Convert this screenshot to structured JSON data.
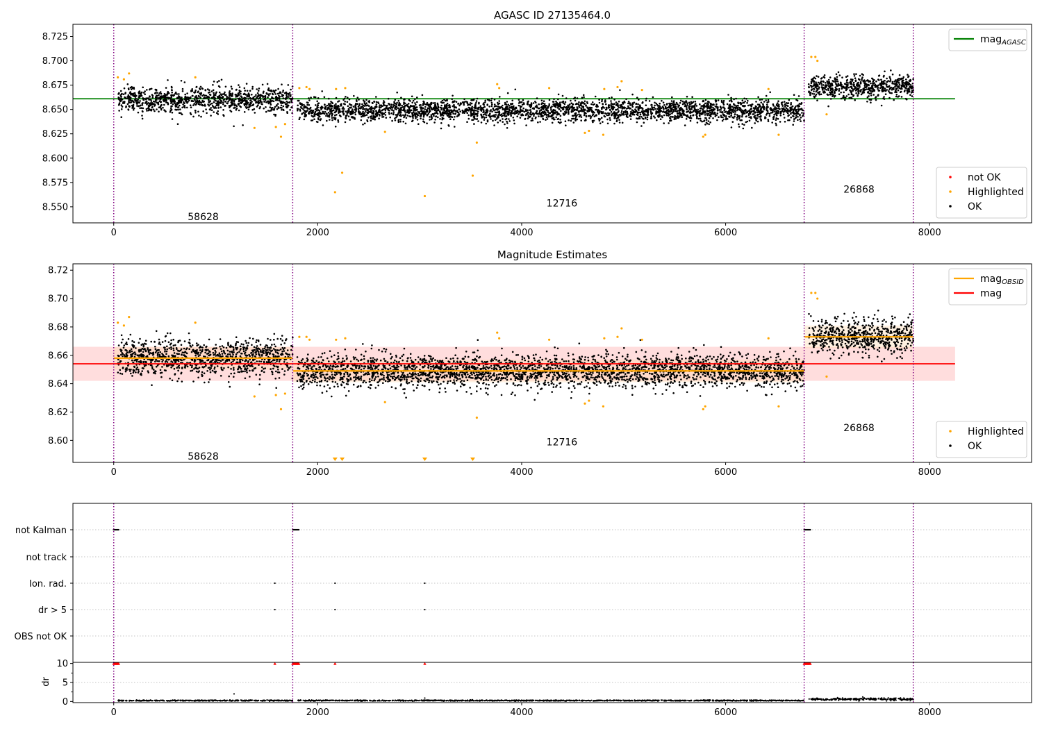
{
  "colors": {
    "ok": "#000000",
    "highlighted": "#ffa500",
    "not_ok": "#ff0000",
    "agasc_line": "#008000",
    "obsid_line": "#ffa500",
    "mag_line": "#ff0000",
    "mag_band": "#ffb3b3",
    "obsid_band": "#ffd8a8",
    "obsid_divider": "#800080",
    "category_grid": "#b0b0b0"
  },
  "chart_data": [
    {
      "type": "scatter",
      "title": "AGASC ID 27135464.0",
      "xlim": [
        -400,
        9000
      ],
      "ylim": [
        8.5335,
        8.7375
      ],
      "xticks": [
        0,
        2000,
        4000,
        6000,
        8000
      ],
      "yticks": [
        8.55,
        8.575,
        8.6,
        8.625,
        8.65,
        8.675,
        8.7,
        8.725
      ],
      "ytick_labels": [
        "8.550",
        "8.575",
        "8.600",
        "8.625",
        "8.650",
        "8.675",
        "8.700",
        "8.725"
      ],
      "obsid_boundaries": [
        0,
        1755,
        6770,
        7840
      ],
      "obsids": [
        {
          "label": "58628",
          "x_start": 0,
          "x_end": 1755,
          "mean": 8.66,
          "spread": 0.009
        },
        {
          "label": "12716",
          "x_start": 1760,
          "x_end": 6770,
          "mean": 8.649,
          "spread": 0.008
        },
        {
          "label": "26868",
          "x_start": 6775,
          "x_end": 7840,
          "mean": 8.673,
          "spread": 0.008
        }
      ],
      "obsid_label_y": [
        8.54,
        8.554,
        8.568
      ],
      "hline": {
        "name": "mag",
        "subscript": "AGASC",
        "y": 8.661,
        "x": [
          -400,
          8250
        ]
      },
      "highlighted": [
        {
          "x": 40,
          "y": 8.683
        },
        {
          "x": 100,
          "y": 8.681
        },
        {
          "x": 150,
          "y": 8.687
        },
        {
          "x": 800,
          "y": 8.683
        },
        {
          "x": 1380,
          "y": 8.631
        },
        {
          "x": 1590,
          "y": 8.632
        },
        {
          "x": 1640,
          "y": 8.622
        },
        {
          "x": 1680,
          "y": 8.635
        },
        {
          "x": 1820,
          "y": 8.672
        },
        {
          "x": 1890,
          "y": 8.673
        },
        {
          "x": 1920,
          "y": 8.671
        },
        {
          "x": 2170,
          "y": 8.565
        },
        {
          "x": 2180,
          "y": 8.671
        },
        {
          "x": 2240,
          "y": 8.585
        },
        {
          "x": 2270,
          "y": 8.672
        },
        {
          "x": 2660,
          "y": 8.627
        },
        {
          "x": 3050,
          "y": 8.561
        },
        {
          "x": 3520,
          "y": 8.582
        },
        {
          "x": 3560,
          "y": 8.616
        },
        {
          "x": 3760,
          "y": 8.676
        },
        {
          "x": 3780,
          "y": 8.672
        },
        {
          "x": 4270,
          "y": 8.672
        },
        {
          "x": 4620,
          "y": 8.626
        },
        {
          "x": 4660,
          "y": 8.628
        },
        {
          "x": 4800,
          "y": 8.624
        },
        {
          "x": 4810,
          "y": 8.671
        },
        {
          "x": 4940,
          "y": 8.673
        },
        {
          "x": 4980,
          "y": 8.679
        },
        {
          "x": 5180,
          "y": 8.67
        },
        {
          "x": 5780,
          "y": 8.622
        },
        {
          "x": 5800,
          "y": 8.624
        },
        {
          "x": 6420,
          "y": 8.671
        },
        {
          "x": 6520,
          "y": 8.624
        },
        {
          "x": 6840,
          "y": 8.704
        },
        {
          "x": 6880,
          "y": 8.704
        },
        {
          "x": 6900,
          "y": 8.7
        },
        {
          "x": 6990,
          "y": 8.645
        }
      ],
      "not_ok": [],
      "legends": [
        {
          "position": "upper-right",
          "entries": [
            {
              "label": "mag",
              "subscript": "AGASC",
              "kind": "line",
              "color_key": "agasc_line"
            }
          ]
        },
        {
          "position": "lower-right",
          "entries": [
            {
              "label": "not OK",
              "kind": "dot",
              "color_key": "not_ok"
            },
            {
              "label": "Highlighted",
              "kind": "dot",
              "color_key": "highlighted"
            },
            {
              "label": "OK",
              "kind": "dot",
              "color_key": "ok"
            }
          ]
        }
      ]
    },
    {
      "type": "scatter",
      "title": "Magnitude Estimates",
      "xlim": [
        -400,
        9000
      ],
      "ylim": [
        8.5845,
        8.7245
      ],
      "xticks": [
        0,
        2000,
        4000,
        6000,
        8000
      ],
      "yticks": [
        8.6,
        8.62,
        8.64,
        8.66,
        8.68,
        8.7,
        8.72
      ],
      "ytick_labels": [
        "8.60",
        "8.62",
        "8.64",
        "8.66",
        "8.68",
        "8.70",
        "8.72"
      ],
      "obsid_boundaries": [
        0,
        1755,
        6770,
        7840
      ],
      "obsids": [
        {
          "label": "58628",
          "x_start": 0,
          "x_end": 1755,
          "mean": 8.658,
          "spread": 0.009,
          "band": [
            8.65,
            8.666
          ]
        },
        {
          "label": "12716",
          "x_start": 1760,
          "x_end": 6770,
          "mean": 8.649,
          "spread": 0.008,
          "band": [
            8.641,
            8.657
          ]
        },
        {
          "label": "26868",
          "x_start": 6775,
          "x_end": 7840,
          "mean": 8.673,
          "spread": 0.008,
          "band": [
            8.665,
            8.681
          ]
        }
      ],
      "obsid_label_y": [
        8.589,
        8.599,
        8.609
      ],
      "mag": {
        "name": "mag",
        "y": 8.654,
        "band": [
          8.642,
          8.666
        ],
        "x": [
          -400,
          8250
        ]
      },
      "obsid_means": [
        {
          "x": [
            0,
            1755
          ],
          "y": 8.658
        },
        {
          "x": [
            1760,
            6770
          ],
          "y": 8.649
        },
        {
          "x": [
            6775,
            7840
          ],
          "y": 8.673
        }
      ],
      "highlighted": [
        {
          "x": 40,
          "y": 8.683
        },
        {
          "x": 100,
          "y": 8.681
        },
        {
          "x": 150,
          "y": 8.687
        },
        {
          "x": 800,
          "y": 8.683
        },
        {
          "x": 1380,
          "y": 8.631
        },
        {
          "x": 1590,
          "y": 8.632
        },
        {
          "x": 1640,
          "y": 8.622
        },
        {
          "x": 1680,
          "y": 8.633
        },
        {
          "x": 1820,
          "y": 8.673
        },
        {
          "x": 1890,
          "y": 8.673
        },
        {
          "x": 1920,
          "y": 8.671
        },
        {
          "x": 2180,
          "y": 8.671
        },
        {
          "x": 2270,
          "y": 8.672
        },
        {
          "x": 2660,
          "y": 8.627
        },
        {
          "x": 3560,
          "y": 8.616
        },
        {
          "x": 3760,
          "y": 8.676
        },
        {
          "x": 3780,
          "y": 8.672
        },
        {
          "x": 4270,
          "y": 8.671
        },
        {
          "x": 4620,
          "y": 8.626
        },
        {
          "x": 4660,
          "y": 8.628
        },
        {
          "x": 4800,
          "y": 8.624
        },
        {
          "x": 4810,
          "y": 8.672
        },
        {
          "x": 4940,
          "y": 8.673
        },
        {
          "x": 4980,
          "y": 8.679
        },
        {
          "x": 5180,
          "y": 8.671
        },
        {
          "x": 5780,
          "y": 8.622
        },
        {
          "x": 5800,
          "y": 8.624
        },
        {
          "x": 6420,
          "y": 8.672
        },
        {
          "x": 6520,
          "y": 8.624
        },
        {
          "x": 6840,
          "y": 8.704
        },
        {
          "x": 6880,
          "y": 8.704
        },
        {
          "x": 6900,
          "y": 8.7
        },
        {
          "x": 6990,
          "y": 8.645
        }
      ],
      "below_range_markers": [
        {
          "x": 2170
        },
        {
          "x": 2240
        },
        {
          "x": 3050
        },
        {
          "x": 3520
        }
      ],
      "legends": [
        {
          "position": "upper-right",
          "entries": [
            {
              "label": "mag",
              "subscript": "OBSID",
              "kind": "line",
              "color_key": "obsid_line"
            },
            {
              "label": "mag",
              "kind": "line",
              "color_key": "mag_line"
            }
          ]
        },
        {
          "position": "lower-right",
          "entries": [
            {
              "label": "Highlighted",
              "kind": "dot",
              "color_key": "highlighted"
            },
            {
              "label": "OK",
              "kind": "dot",
              "color_key": "ok"
            }
          ]
        }
      ]
    },
    {
      "type": "scatter",
      "title": "",
      "xlim": [
        -400,
        9000
      ],
      "categories": [
        "not Kalman",
        "not track",
        "Ion. rad.",
        "dr > 5",
        "OBS not OK"
      ],
      "flags": {
        "not Kalman": [
          [
            0,
            50
          ],
          [
            1755,
            1820
          ],
          [
            6770,
            6830
          ]
        ],
        "not track": [],
        "Ion. rad.": [
          1580,
          2170,
          3050
        ],
        "dr > 5": [
          1580,
          2170,
          3050
        ],
        "OBS not OK": []
      },
      "obsid_boundaries": [
        0,
        1755,
        6770,
        7840
      ]
    },
    {
      "type": "scatter",
      "title": "",
      "ylabel": "dr",
      "xlim": [
        -400,
        9000
      ],
      "ylim": [
        -0.3,
        10.3
      ],
      "xticks": [
        0,
        2000,
        4000,
        6000,
        8000
      ],
      "yticks": [
        0,
        5,
        10
      ],
      "obsid_boundaries": [
        0,
        1755,
        6770,
        7840
      ],
      "clipped_markers": [
        {
          "x0": 0,
          "x1": 50
        },
        {
          "x0": 1580,
          "x1": 1580
        },
        {
          "x0": 1755,
          "x1": 1820
        },
        {
          "x0": 2170,
          "x1": 2170
        },
        {
          "x0": 3050,
          "x1": 3050
        },
        {
          "x0": 6770,
          "x1": 6830
        }
      ],
      "segments": [
        {
          "x_start": 0,
          "x_end": 1755,
          "mean": 0.25,
          "spread": 0.1
        },
        {
          "x_start": 1760,
          "x_end": 6770,
          "mean": 0.25,
          "spread": 0.1
        },
        {
          "x_start": 6775,
          "x_end": 7840,
          "mean": 0.6,
          "spread": 0.25
        }
      ],
      "outliers": [
        {
          "x": 1180,
          "y": 2.0
        },
        {
          "x": 3050,
          "y": 0.9
        }
      ]
    }
  ]
}
